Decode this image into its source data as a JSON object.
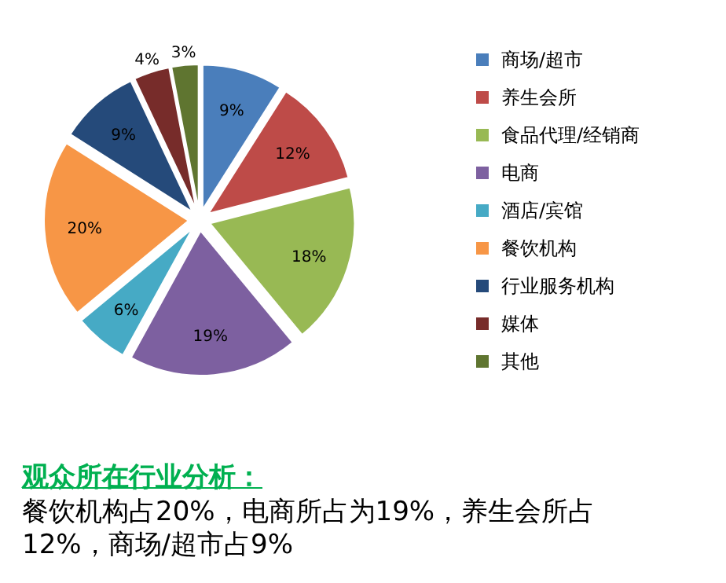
{
  "chart_data": {
    "type": "pie",
    "title": "观众所在行业分析：",
    "categories": [
      "商场/超市",
      "养生会所",
      "食品代理/经销商",
      "电商",
      "酒店/宾馆",
      "餐饮机构",
      "行业服务机构",
      "媒体",
      "其他"
    ],
    "values": [
      9,
      12,
      18,
      19,
      6,
      20,
      9,
      4,
      3
    ],
    "value_labels": [
      "9%",
      "12%",
      "18%",
      "19%",
      "6%",
      "20%",
      "9%",
      "4%",
      "3%"
    ],
    "colors": [
      "#4a7ebb",
      "#be4b48",
      "#98b954",
      "#7d60a0",
      "#46aac5",
      "#f79646",
      "#254a7a",
      "#772c2a",
      "#5f7530"
    ],
    "legend": "right",
    "annotations": [
      "餐饮机构占20%，电商所占为19%，养生会所占12%，商场/超市占9%"
    ]
  }
}
